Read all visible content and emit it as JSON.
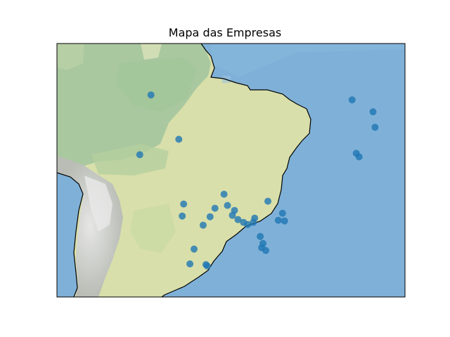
{
  "title": "Mapa das Empresas",
  "map": {
    "lon_range": [
      -82,
      -32
    ],
    "lat_range": [
      -36,
      0
    ],
    "projection": "plate-carree",
    "background": "stock-image-relief",
    "colors": {
      "ocean": "#7fb1d8",
      "lowland": "#a9c8a0",
      "plateau": "#d9dfaa",
      "andes": "#cfcfcf",
      "coastline": "#000000",
      "marker": "#1f77b4"
    }
  },
  "locations": [
    {
      "lon": -68.5,
      "lat": -7.3
    },
    {
      "lon": -64.5,
      "lat": -13.6
    },
    {
      "lon": -70.1,
      "lat": -15.8
    },
    {
      "lon": -39.6,
      "lat": -8.0
    },
    {
      "lon": -36.6,
      "lat": -9.7
    },
    {
      "lon": -36.3,
      "lat": -11.9
    },
    {
      "lon": -39.0,
      "lat": -15.6
    },
    {
      "lon": -38.6,
      "lat": -16.1
    },
    {
      "lon": -58.0,
      "lat": -21.4
    },
    {
      "lon": -63.8,
      "lat": -22.8
    },
    {
      "lon": -64.0,
      "lat": -24.5
    },
    {
      "lon": -59.3,
      "lat": -23.4
    },
    {
      "lon": -57.5,
      "lat": -23.0
    },
    {
      "lon": -56.5,
      "lat": -23.7
    },
    {
      "lon": -56.8,
      "lat": -24.4
    },
    {
      "lon": -56.0,
      "lat": -25.0
    },
    {
      "lon": -55.2,
      "lat": -25.4
    },
    {
      "lon": -54.6,
      "lat": -25.7
    },
    {
      "lon": -53.6,
      "lat": -24.8
    },
    {
      "lon": -53.8,
      "lat": -25.4
    },
    {
      "lon": -61.0,
      "lat": -25.8
    },
    {
      "lon": -60.0,
      "lat": -24.6
    },
    {
      "lon": -49.6,
      "lat": -24.1
    },
    {
      "lon": -50.2,
      "lat": -25.1
    },
    {
      "lon": -49.3,
      "lat": -25.2
    },
    {
      "lon": -51.7,
      "lat": -22.4
    },
    {
      "lon": -52.8,
      "lat": -27.4
    },
    {
      "lon": -52.4,
      "lat": -28.4
    },
    {
      "lon": -52.6,
      "lat": -29.0
    },
    {
      "lon": -52.0,
      "lat": -29.4
    },
    {
      "lon": -62.3,
      "lat": -29.2
    },
    {
      "lon": -62.9,
      "lat": -31.3
    },
    {
      "lon": -60.6,
      "lat": -31.4
    },
    {
      "lon": -60.4,
      "lat": -31.6
    }
  ]
}
